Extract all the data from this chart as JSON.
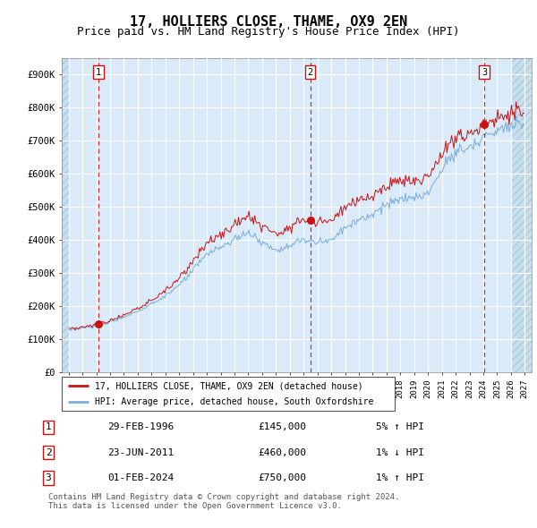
{
  "title": "17, HOLLIERS CLOSE, THAME, OX9 2EN",
  "subtitle": "Price paid vs. HM Land Registry's House Price Index (HPI)",
  "ylim": [
    0,
    950000
  ],
  "yticks": [
    0,
    100000,
    200000,
    300000,
    400000,
    500000,
    600000,
    700000,
    800000,
    900000
  ],
  "ytick_labels": [
    "£0",
    "£100K",
    "£200K",
    "£300K",
    "£400K",
    "£500K",
    "£600K",
    "£700K",
    "£800K",
    "£900K"
  ],
  "xlim_start": 1993.5,
  "xlim_end": 2027.5,
  "hpi_color": "#7aaedb",
  "price_color": "#cc1111",
  "bg_color": "#daeaf8",
  "grid_color": "#ffffff",
  "sale_dates": [
    1996.16,
    2011.48,
    2024.08
  ],
  "sale_prices": [
    145000,
    460000,
    750000
  ],
  "sale_labels": [
    "1",
    "2",
    "3"
  ],
  "legend_line1": "17, HOLLIERS CLOSE, THAME, OX9 2EN (detached house)",
  "legend_line2": "HPI: Average price, detached house, South Oxfordshire",
  "table_data": [
    [
      "1",
      "29-FEB-1996",
      "£145,000",
      "5% ↑ HPI"
    ],
    [
      "2",
      "23-JUN-2011",
      "£460,000",
      "1% ↓ HPI"
    ],
    [
      "3",
      "01-FEB-2024",
      "£750,000",
      "1% ↑ HPI"
    ]
  ],
  "footnote": "Contains HM Land Registry data © Crown copyright and database right 2024.\nThis data is licensed under the Open Government Licence v3.0.",
  "title_fontsize": 11,
  "subtitle_fontsize": 9,
  "tick_fontsize": 7.5
}
